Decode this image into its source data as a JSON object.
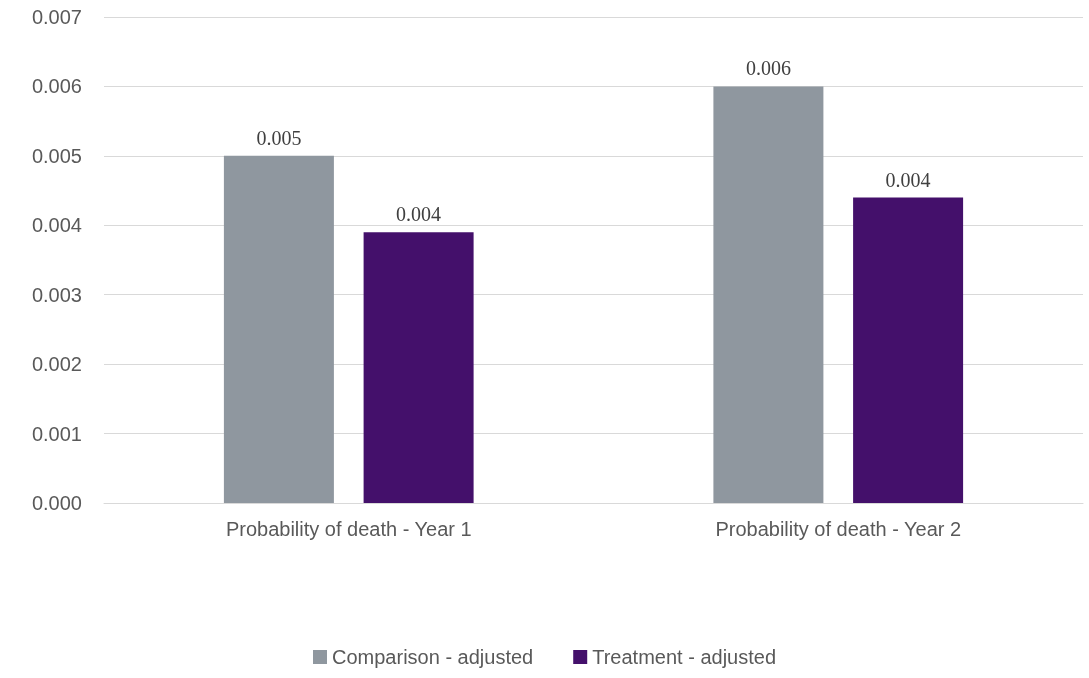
{
  "chart_data": {
    "type": "bar",
    "categories": [
      "Probability of death - Year 1",
      "Probability of death - Year 2"
    ],
    "series": [
      {
        "name": "Comparison - adjusted",
        "color": "#8f979f",
        "values": [
          0.005,
          0.006
        ],
        "value_labels": [
          "0.005",
          "0.006"
        ]
      },
      {
        "name": "Treatment - adjusted",
        "color": "#44106b",
        "values": [
          0.0039,
          0.0044
        ],
        "value_labels": [
          "0.004",
          "0.004"
        ]
      }
    ],
    "ylim": [
      0,
      0.007
    ],
    "yticks": [
      {
        "value": 0,
        "label": "0.000"
      },
      {
        "value": 0.001,
        "label": "0.001"
      },
      {
        "value": 0.002,
        "label": "0.002"
      },
      {
        "value": 0.003,
        "label": "0.003"
      },
      {
        "value": 0.004,
        "label": "0.004"
      },
      {
        "value": 0.005,
        "label": "0.005"
      },
      {
        "value": 0.006,
        "label": "0.006"
      },
      {
        "value": 0.007,
        "label": "0.007"
      }
    ],
    "grid": "y",
    "legend": "bottom"
  }
}
